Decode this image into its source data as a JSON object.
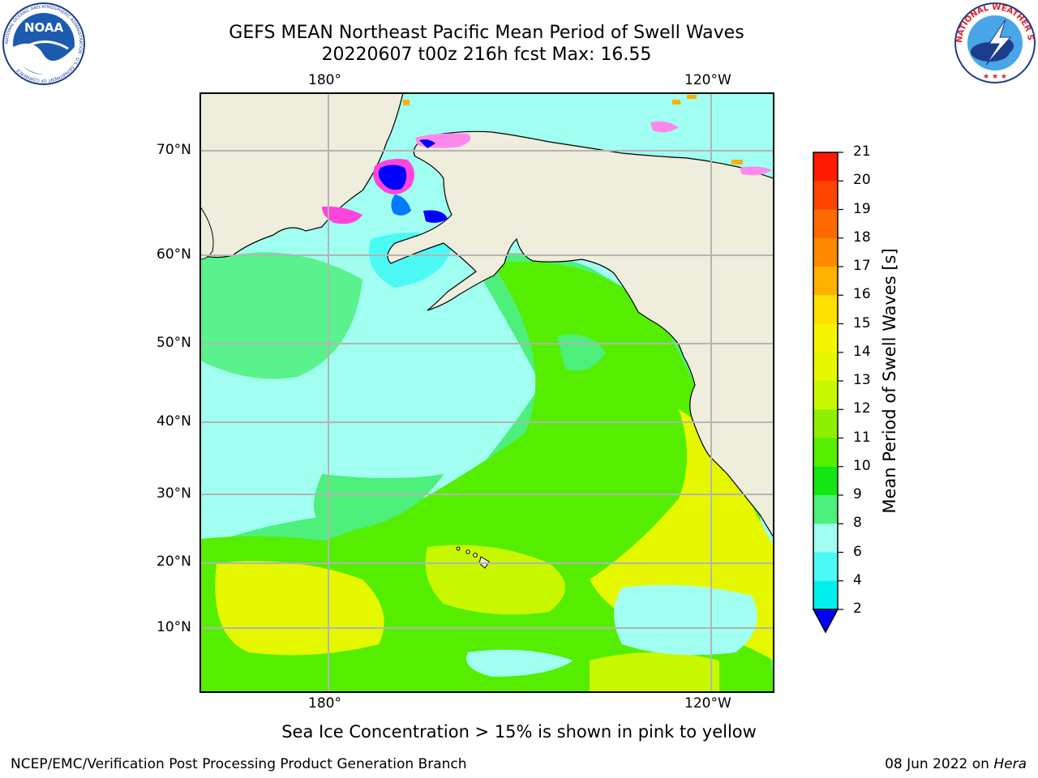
{
  "header": {
    "title_line1": "GEFS MEAN Northeast Pacific Mean Period of Swell Waves",
    "title_line2": "20220607 t00z 216h fcst   Max: 16.55"
  },
  "logos": {
    "noaa_text": "NOAA",
    "noaa_ring_text": "NATIONAL OCEANIC AND ATMOSPHERIC ADMINISTRATION · U.S. DEPARTMENT OF COMMERCE",
    "nws_ring_text": "NATIONAL WEATHER SERVICE"
  },
  "map": {
    "lon_labels_top": [
      "180°",
      "120°W"
    ],
    "lon_labels_bottom": [
      "180°",
      "120°W"
    ],
    "lat_labels": [
      "70°N",
      "60°N",
      "50°N",
      "40°N",
      "30°N",
      "20°N",
      "10°N"
    ],
    "colors": {
      "land": "#efeddc",
      "gridline": "#b4b4b4",
      "coast": "#000000"
    }
  },
  "colorbar": {
    "label": "Mean Period of Swell Waves [s]",
    "ticks": [
      "21",
      "20",
      "19",
      "18",
      "17",
      "16",
      "15",
      "14",
      "13",
      "12",
      "11",
      "10",
      "9",
      "8",
      "6",
      "4",
      "2"
    ],
    "colors_top_to_bottom": [
      "#ff1a00",
      "#ff4400",
      "#ff6a00",
      "#ff8a00",
      "#ffb000",
      "#ffe000",
      "#f5f500",
      "#e6f800",
      "#c8f800",
      "#8ef000",
      "#55ee00",
      "#14e614",
      "#4cf07a",
      "#a0fff0",
      "#4cfaf5",
      "#00f0f0",
      "#00c8ff",
      "#0078ff"
    ],
    "extend_color": "#0000ff"
  },
  "notes": {
    "sea_ice": "Sea Ice Concentration > 15% is shown in pink to yellow"
  },
  "footer": {
    "left": "NCEP/EMC/Verification Post Processing Product Generation Branch",
    "right_date": "08 Jun 2022 on ",
    "right_host": "Hera"
  }
}
